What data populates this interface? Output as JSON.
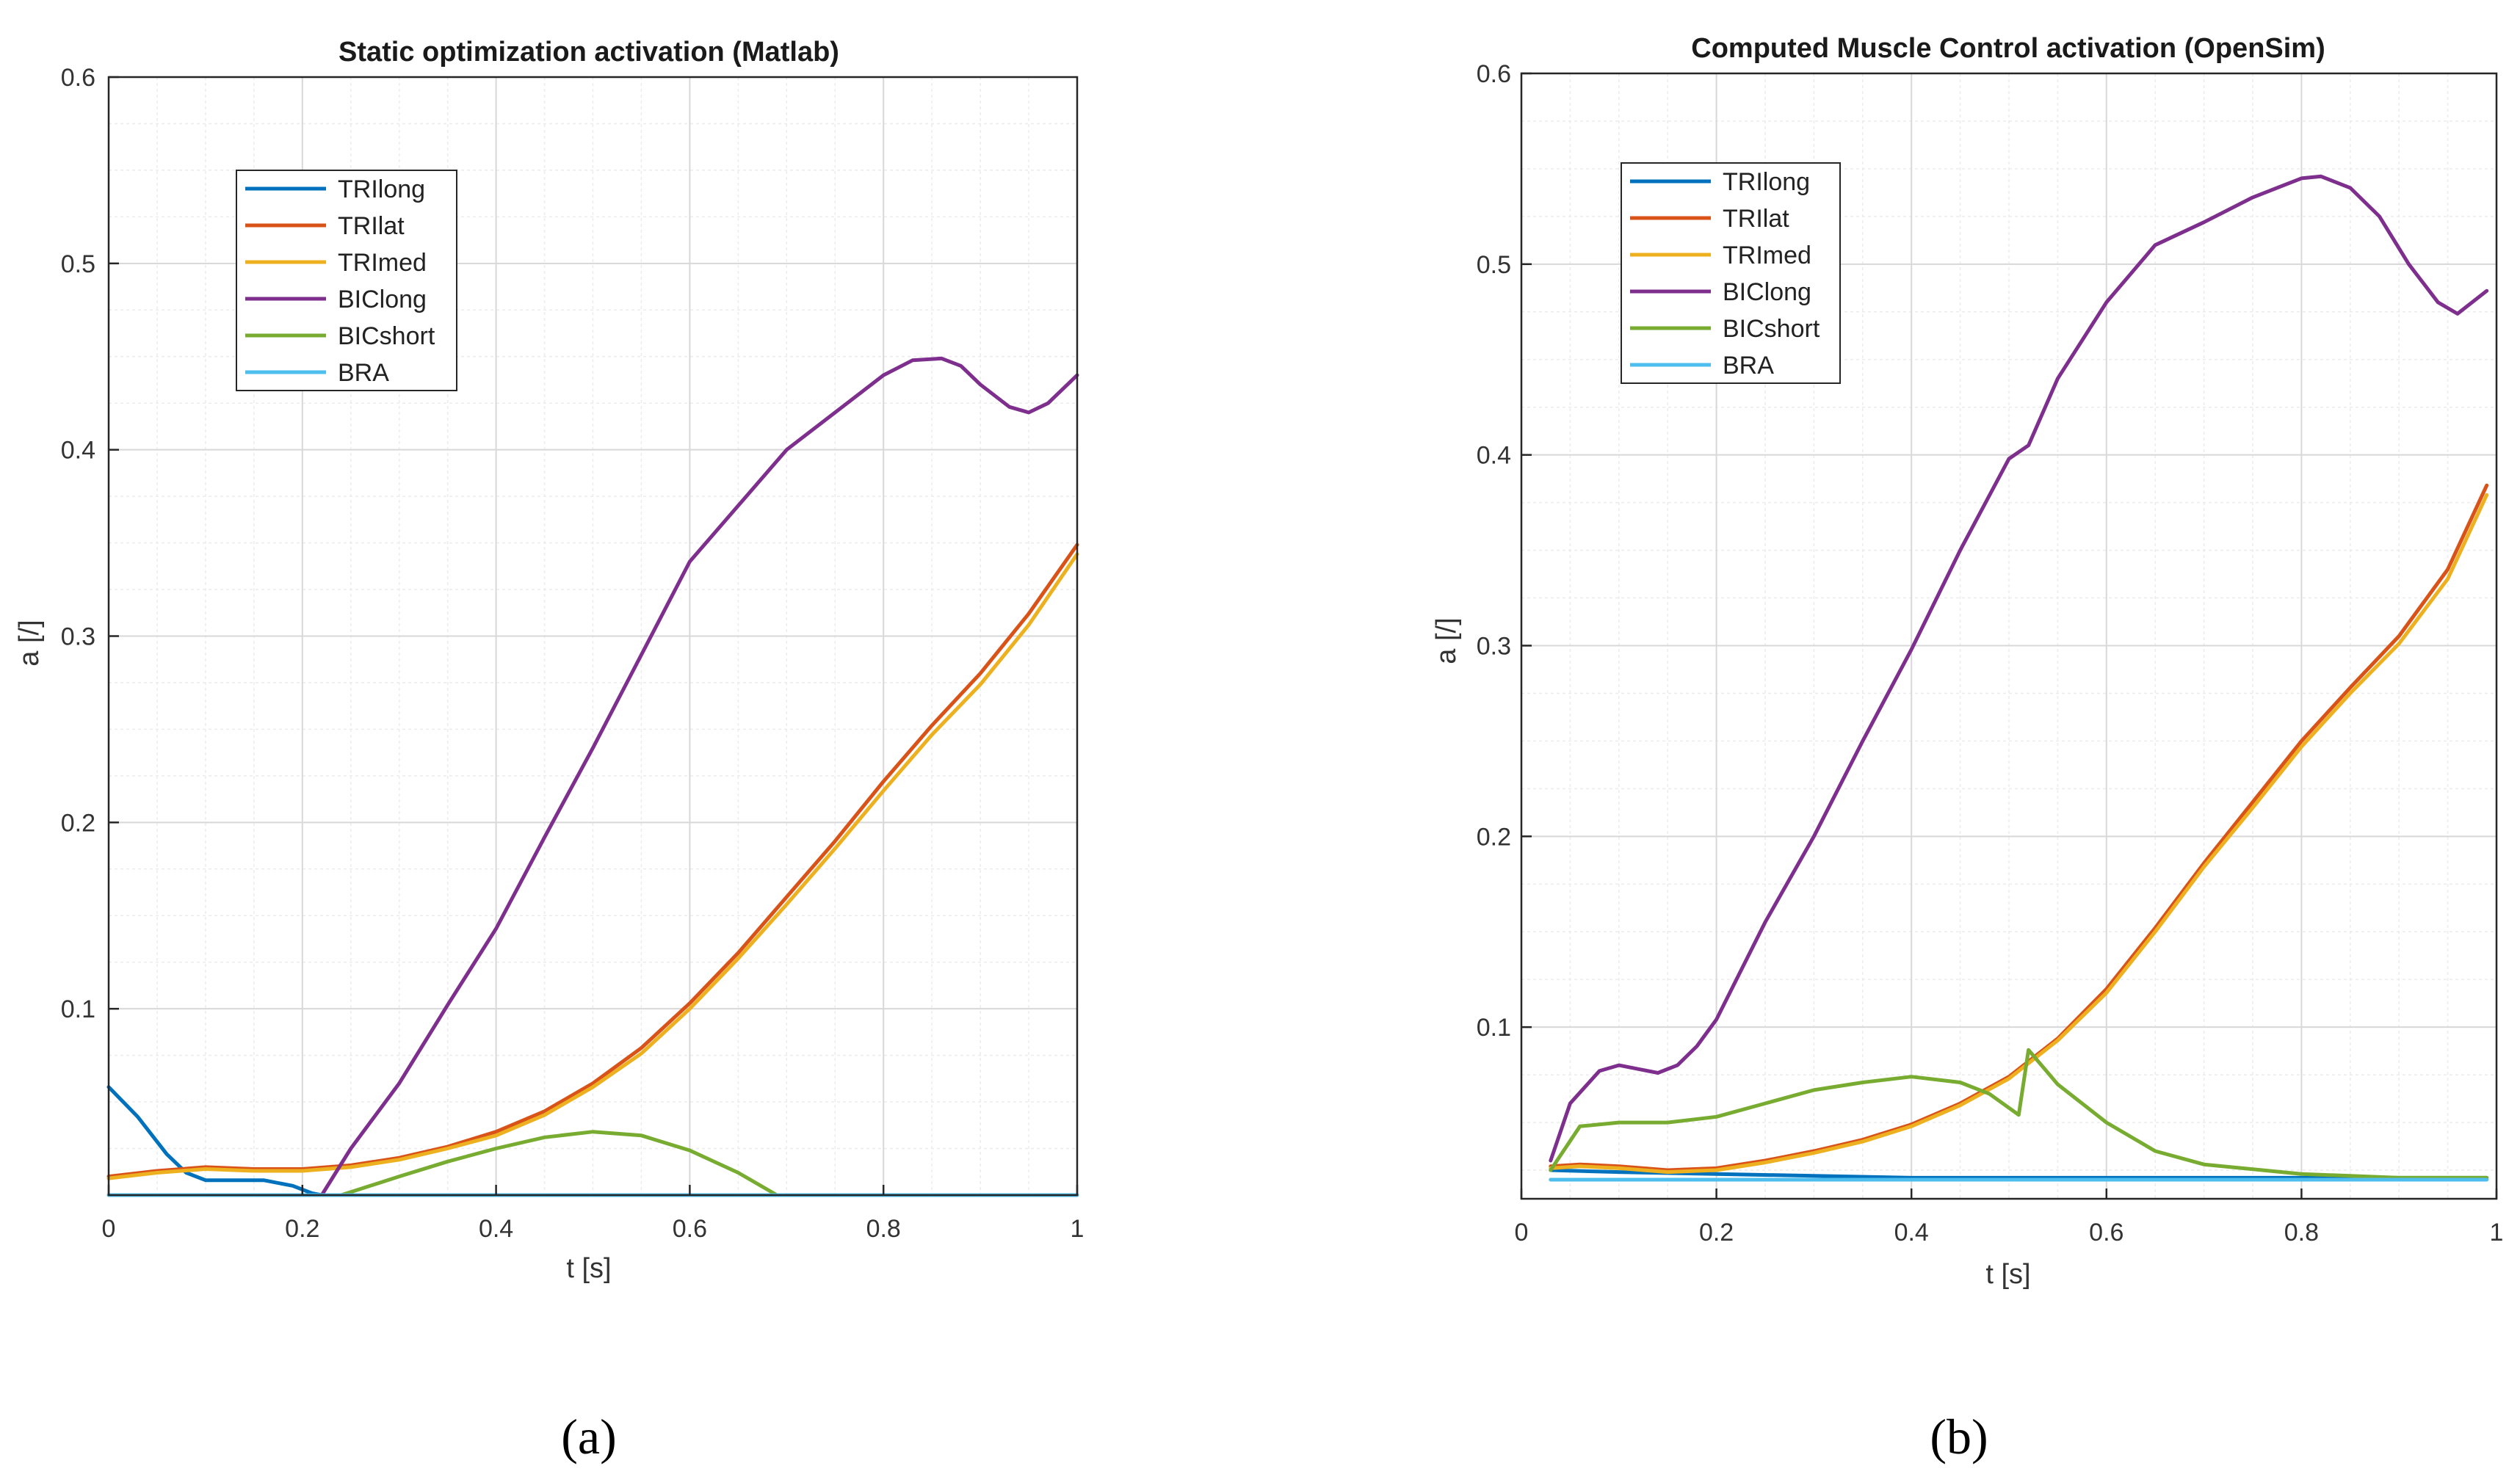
{
  "colors": {
    "TRIlong": "#0072BD",
    "TRIlat": "#D95319",
    "TRImed": "#EDB120",
    "BIClong": "#7E2F8E",
    "BICshort": "#77AC30",
    "BRA": "#4DBEEE"
  },
  "panels": [
    {
      "id": "a",
      "label": "(a)"
    },
    {
      "id": "b",
      "label": "(b)"
    }
  ],
  "chart_data": [
    {
      "type": "line",
      "title": "Static optimization activation (Matlab)",
      "xlabel": "t [s]",
      "ylabel": "a [/]",
      "xlim": [
        0,
        1
      ],
      "ylim": [
        0,
        0.6
      ],
      "xticks": [
        0,
        0.2,
        0.4,
        0.6,
        0.8,
        1
      ],
      "xtick_labels": [
        "0",
        "0.2",
        "0.4",
        "0.6",
        "0.8",
        "1"
      ],
      "yticks": [
        0.1,
        0.2,
        0.3,
        0.4,
        0.5,
        0.6
      ],
      "ytick_labels": [
        "0.1",
        "0.2",
        "0.3",
        "0.4",
        "0.5",
        "0.6"
      ],
      "grid": true,
      "legend_position": "upper-left",
      "series": [
        {
          "name": "TRIlong",
          "x": [
            0,
            0.03,
            0.06,
            0.08,
            0.1,
            0.13,
            0.16,
            0.19,
            0.21,
            0.22
          ],
          "y": [
            0.058,
            0.042,
            0.022,
            0.012,
            0.008,
            0.008,
            0.008,
            0.005,
            0.001,
            0.0
          ]
        },
        {
          "name": "TRIlat",
          "x": [
            0,
            0.05,
            0.1,
            0.15,
            0.2,
            0.25,
            0.3,
            0.35,
            0.4,
            0.45,
            0.5,
            0.55,
            0.6,
            0.65,
            0.7,
            0.75,
            0.8,
            0.85,
            0.9,
            0.95,
            1.0
          ],
          "y": [
            0.01,
            0.013,
            0.015,
            0.014,
            0.014,
            0.016,
            0.02,
            0.026,
            0.034,
            0.045,
            0.06,
            0.079,
            0.103,
            0.13,
            0.16,
            0.19,
            0.222,
            0.252,
            0.28,
            0.312,
            0.349
          ]
        },
        {
          "name": "TRImed",
          "x": [
            0,
            0.05,
            0.1,
            0.15,
            0.2,
            0.25,
            0.3,
            0.35,
            0.4,
            0.45,
            0.5,
            0.55,
            0.6,
            0.65,
            0.7,
            0.75,
            0.8,
            0.85,
            0.9,
            0.95,
            1.0
          ],
          "y": [
            0.009,
            0.012,
            0.014,
            0.013,
            0.013,
            0.015,
            0.019,
            0.025,
            0.032,
            0.043,
            0.058,
            0.076,
            0.1,
            0.127,
            0.156,
            0.186,
            0.217,
            0.247,
            0.274,
            0.306,
            0.344
          ]
        },
        {
          "name": "BIClong",
          "x": [
            0.22,
            0.25,
            0.3,
            0.35,
            0.4,
            0.45,
            0.5,
            0.55,
            0.6,
            0.65,
            0.7,
            0.75,
            0.8,
            0.83,
            0.86,
            0.88,
            0.9,
            0.93,
            0.95,
            0.97,
            1.0
          ],
          "y": [
            0.0,
            0.025,
            0.06,
            0.102,
            0.143,
            0.192,
            0.24,
            0.29,
            0.34,
            0.37,
            0.4,
            0.42,
            0.44,
            0.448,
            0.449,
            0.445,
            0.435,
            0.423,
            0.42,
            0.425,
            0.44
          ]
        },
        {
          "name": "BICshort",
          "x": [
            0.24,
            0.3,
            0.35,
            0.4,
            0.45,
            0.5,
            0.55,
            0.6,
            0.65,
            0.69
          ],
          "y": [
            0.0,
            0.01,
            0.018,
            0.025,
            0.031,
            0.034,
            0.032,
            0.024,
            0.012,
            0.0
          ]
        },
        {
          "name": "BRA",
          "x": [
            0,
            1.0
          ],
          "y": [
            0.0,
            0.0
          ]
        }
      ]
    },
    {
      "type": "line",
      "title": "Computed Muscle Control activation (OpenSim)",
      "xlabel": "t [s]",
      "ylabel": "a [/]",
      "xlim": [
        0,
        1
      ],
      "ylim": [
        0.01,
        0.6
      ],
      "xticks": [
        0,
        0.2,
        0.4,
        0.6,
        0.8,
        1
      ],
      "xtick_labels": [
        "0",
        "0.2",
        "0.4",
        "0.6",
        "0.8",
        "1"
      ],
      "yticks": [
        0.1,
        0.2,
        0.3,
        0.4,
        0.5,
        0.6
      ],
      "ytick_labels": [
        "0.1",
        "0.2",
        "0.3",
        "0.4",
        "0.5",
        "0.6"
      ],
      "grid": true,
      "legend_position": "upper-left",
      "series": [
        {
          "name": "TRIlong",
          "x": [
            0.03,
            0.1,
            0.2,
            0.3,
            0.4,
            0.5,
            0.6,
            0.7,
            0.8,
            0.9,
            0.99
          ],
          "y": [
            0.025,
            0.024,
            0.023,
            0.022,
            0.021,
            0.021,
            0.021,
            0.021,
            0.021,
            0.021,
            0.021
          ]
        },
        {
          "name": "TRIlat",
          "x": [
            0.03,
            0.06,
            0.1,
            0.15,
            0.2,
            0.25,
            0.3,
            0.35,
            0.4,
            0.45,
            0.5,
            0.55,
            0.6,
            0.65,
            0.7,
            0.75,
            0.8,
            0.85,
            0.9,
            0.95,
            0.99
          ],
          "y": [
            0.027,
            0.028,
            0.027,
            0.025,
            0.026,
            0.03,
            0.035,
            0.041,
            0.049,
            0.06,
            0.074,
            0.094,
            0.12,
            0.152,
            0.186,
            0.218,
            0.25,
            0.278,
            0.305,
            0.34,
            0.384
          ]
        },
        {
          "name": "TRImed",
          "x": [
            0.03,
            0.06,
            0.1,
            0.15,
            0.2,
            0.25,
            0.3,
            0.35,
            0.4,
            0.45,
            0.5,
            0.55,
            0.6,
            0.65,
            0.7,
            0.75,
            0.8,
            0.85,
            0.9,
            0.95,
            0.99
          ],
          "y": [
            0.026,
            0.027,
            0.026,
            0.024,
            0.025,
            0.029,
            0.034,
            0.04,
            0.048,
            0.059,
            0.073,
            0.093,
            0.118,
            0.15,
            0.184,
            0.215,
            0.247,
            0.275,
            0.301,
            0.335,
            0.379
          ]
        },
        {
          "name": "BIClong",
          "x": [
            0.03,
            0.05,
            0.08,
            0.1,
            0.12,
            0.14,
            0.16,
            0.18,
            0.2,
            0.25,
            0.3,
            0.35,
            0.4,
            0.45,
            0.5,
            0.52,
            0.55,
            0.6,
            0.65,
            0.7,
            0.75,
            0.8,
            0.82,
            0.85,
            0.88,
            0.91,
            0.94,
            0.96,
            0.99
          ],
          "y": [
            0.03,
            0.06,
            0.077,
            0.08,
            0.078,
            0.076,
            0.08,
            0.09,
            0.104,
            0.155,
            0.2,
            0.25,
            0.298,
            0.35,
            0.398,
            0.405,
            0.44,
            0.48,
            0.51,
            0.522,
            0.535,
            0.545,
            0.546,
            0.54,
            0.525,
            0.5,
            0.48,
            0.474,
            0.486
          ]
        },
        {
          "name": "BICshort",
          "x": [
            0.03,
            0.06,
            0.1,
            0.15,
            0.2,
            0.25,
            0.3,
            0.35,
            0.4,
            0.45,
            0.48,
            0.51,
            0.52,
            0.55,
            0.6,
            0.65,
            0.7,
            0.8,
            0.9,
            0.99
          ],
          "y": [
            0.025,
            0.048,
            0.05,
            0.05,
            0.053,
            0.06,
            0.067,
            0.071,
            0.074,
            0.071,
            0.065,
            0.054,
            0.088,
            0.07,
            0.05,
            0.035,
            0.028,
            0.023,
            0.021,
            0.021
          ]
        },
        {
          "name": "BRA",
          "x": [
            0.03,
            0.99
          ],
          "y": [
            0.02,
            0.02
          ]
        }
      ]
    }
  ]
}
